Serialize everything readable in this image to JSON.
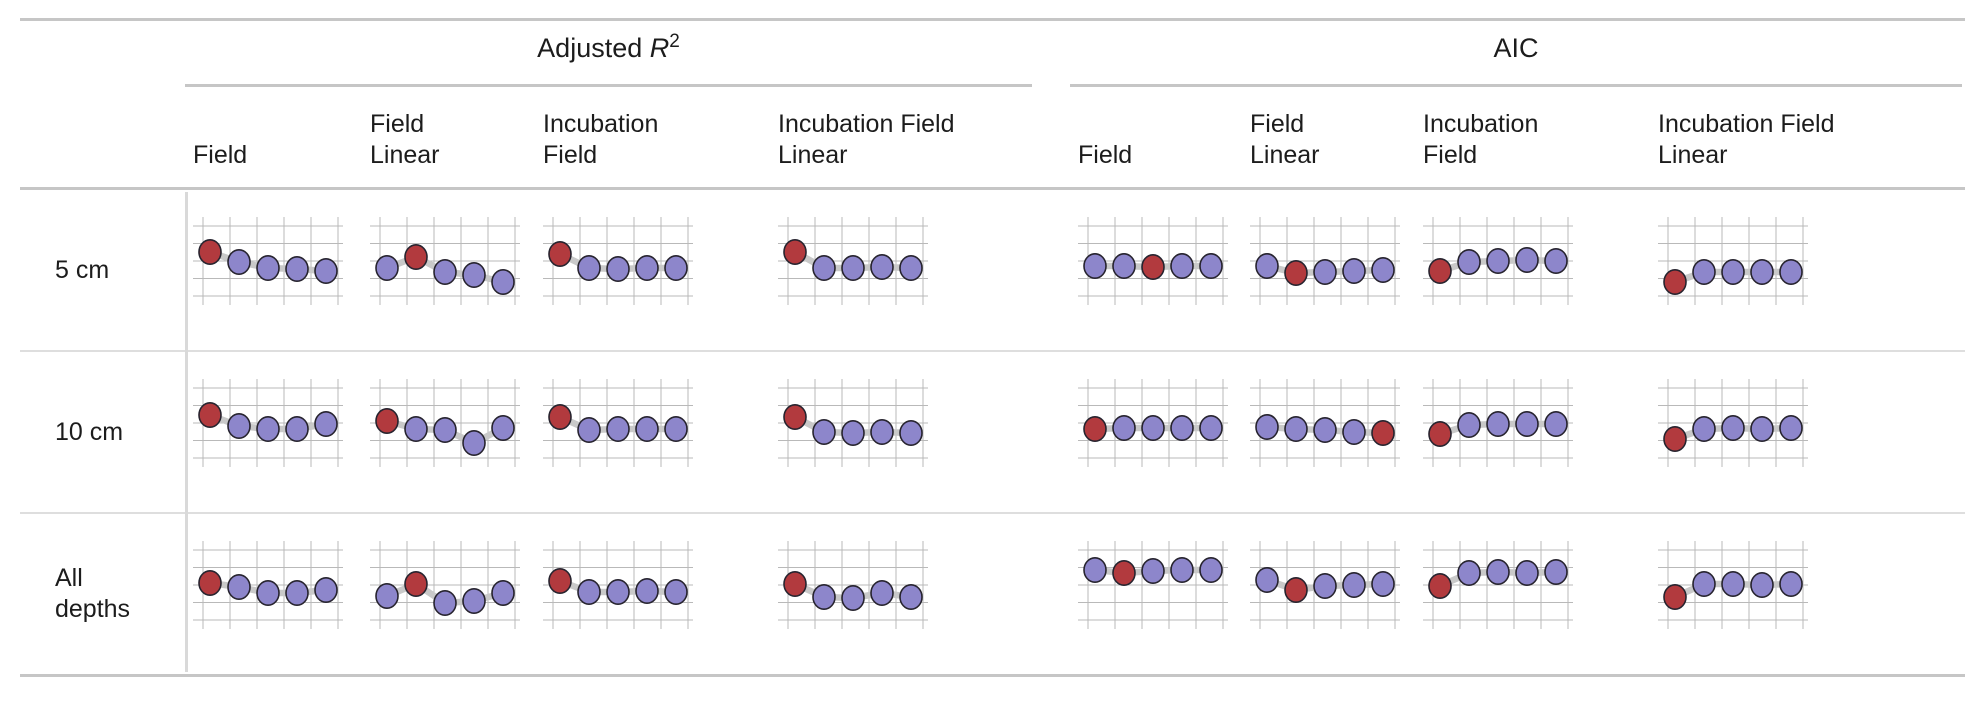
{
  "figure": {
    "groups": [
      {
        "title": {
          "prefix": "Adjusted ",
          "variable": "R",
          "sup": "2"
        },
        "columns": [
          {
            "lines": [
              "Field"
            ]
          },
          {
            "lines": [
              "Field",
              "Linear"
            ]
          },
          {
            "lines": [
              "Incubation",
              "Field"
            ]
          },
          {
            "lines": [
              "Incubation Field",
              "Linear"
            ]
          }
        ]
      },
      {
        "title": {
          "prefix": "AIC",
          "variable": "",
          "sup": ""
        },
        "columns": [
          {
            "lines": [
              "Field"
            ]
          },
          {
            "lines": [
              "Field",
              "Linear"
            ]
          },
          {
            "lines": [
              "Incubation",
              "Field"
            ]
          },
          {
            "lines": [
              "Incubation Field",
              "Linear"
            ]
          }
        ]
      }
    ],
    "rows": [
      {
        "label_lines": [
          "5 cm"
        ]
      },
      {
        "label_lines": [
          "10 cm"
        ]
      },
      {
        "label_lines": [
          "All",
          "depths"
        ]
      }
    ]
  },
  "colors": {
    "point_purple": "#8d86cb",
    "point_red": "#b23a3e",
    "point_outline": "#27242f",
    "connector": "#c9c9c9",
    "grid": "#b9b9b9",
    "rule_heavy": "#c6c6c6",
    "rule_light": "#dedede",
    "divider": "#d9d9d9",
    "text": "#1c1c1c"
  },
  "chart_data": {
    "type": "line",
    "description": "Table of sparkline dot-line charts comparing model fit (Adjusted R2 and AIC) for four model types (Field, Field Linear, Incubation Field, Incubation Field Linear) across three depths (5 cm, 10 cm, All depths). Each sparkline has 5 points connected by a thick gray line on a light grid; one point per cell is highlighted red (best model), the rest are purple. No numeric axes are shown; y values below are relative vertical positions in the cell (0 = top, 95 = bottom).",
    "row_labels": [
      "5 cm",
      "10 cm",
      "All depths"
    ],
    "col_groups": [
      "Adjusted R2",
      "AIC"
    ],
    "col_labels": [
      "Field",
      "Field Linear",
      "Incubation Field",
      "Incubation Field Linear",
      "Field",
      "Field Linear",
      "Incubation Field",
      "Incubation Field Linear"
    ],
    "points_per_cell": 5,
    "grid": {
      "h_lines_y": [
        10,
        27.5,
        45,
        62.5,
        80
      ],
      "v_lines_x": [
        10,
        37,
        64,
        91,
        118,
        145
      ]
    },
    "point_x": [
      17,
      46,
      75,
      104,
      133
    ],
    "cells": [
      [
        {
          "red_index": 0,
          "y": [
            36,
            46,
            52,
            53,
            55
          ]
        },
        {
          "red_index": 1,
          "y": [
            52,
            41,
            56,
            59,
            66
          ]
        },
        {
          "red_index": 0,
          "y": [
            38,
            52,
            53,
            52,
            52
          ]
        },
        {
          "red_index": 0,
          "y": [
            36,
            52,
            52,
            51,
            52
          ]
        },
        {
          "red_index": 2,
          "y": [
            50,
            50,
            51,
            50,
            50
          ]
        },
        {
          "red_index": 1,
          "y": [
            50,
            57,
            56,
            55,
            54
          ]
        },
        {
          "red_index": 0,
          "y": [
            55,
            46,
            45,
            44,
            45
          ]
        },
        {
          "red_index": 0,
          "y": [
            66,
            56,
            56,
            56,
            56
          ]
        }
      ],
      [
        {
          "red_index": 0,
          "y": [
            37,
            48,
            51,
            51,
            46
          ]
        },
        {
          "red_index": 0,
          "y": [
            43,
            51,
            52,
            65,
            50
          ]
        },
        {
          "red_index": 0,
          "y": [
            39,
            52,
            51,
            51,
            51
          ]
        },
        {
          "red_index": 0,
          "y": [
            39,
            54,
            55,
            54,
            55
          ]
        },
        {
          "red_index": 0,
          "y": [
            51,
            50,
            50,
            50,
            50
          ]
        },
        {
          "red_index": 4,
          "y": [
            49,
            51,
            52,
            54,
            55
          ]
        },
        {
          "red_index": 0,
          "y": [
            56,
            47,
            46,
            46,
            46
          ]
        },
        {
          "red_index": 0,
          "y": [
            61,
            51,
            50,
            51,
            50
          ]
        }
      ],
      [
        {
          "red_index": 0,
          "y": [
            43,
            47,
            53,
            53,
            50
          ]
        },
        {
          "red_index": 1,
          "y": [
            56,
            44,
            63,
            61,
            53
          ]
        },
        {
          "red_index": 0,
          "y": [
            41,
            52,
            52,
            51,
            52
          ]
        },
        {
          "red_index": 0,
          "y": [
            44,
            57,
            58,
            53,
            57
          ]
        },
        {
          "red_index": 1,
          "y": [
            30,
            33,
            31,
            30,
            30
          ]
        },
        {
          "red_index": 1,
          "y": [
            40,
            50,
            46,
            45,
            44
          ]
        },
        {
          "red_index": 0,
          "y": [
            46,
            33,
            32,
            33,
            32
          ]
        },
        {
          "red_index": 0,
          "y": [
            57,
            44,
            44,
            45,
            44
          ]
        }
      ]
    ]
  }
}
